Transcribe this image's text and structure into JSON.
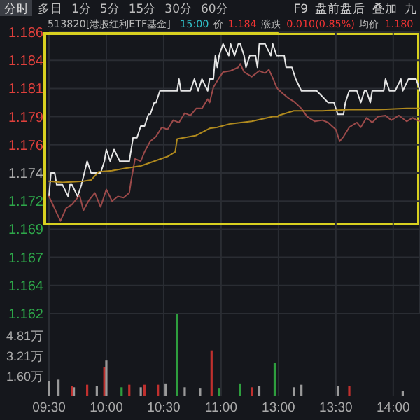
{
  "chart_data": [
    {
      "type": "line",
      "annotations": [
        "分时",
        "多日",
        "1分",
        "5分",
        "15分",
        "30分",
        "60分",
        "F9",
        "盘前盘后",
        "叠加",
        "九",
        "513820[港股红利ETF基金]",
        "15:00",
        "价",
        "1.184",
        "涨跌",
        "0.010(0.85%)",
        "均价",
        "1.180"
      ],
      "xlim": [
        9.5,
        11.5
      ],
      "xticks": [
        9.5,
        10,
        10.5,
        11
      ],
      "ylim": [
        1.162,
        1.186
      ],
      "yticks": [
        1.162,
        {
          "value": 1.1644,
          "label": "1.164"
        },
        {
          "value": 1.1668,
          "label": "1.167"
        },
        {
          "value": 1.1692,
          "label": "1.169"
        },
        {
          "value": 1.1716,
          "label": "1.172"
        },
        1.174,
        {
          "value": 1.1764,
          "label": "1.176"
        },
        {
          "value": 1.1788,
          "label": "1.179"
        },
        {
          "value": 1.1812,
          "label": "1.181"
        },
        {
          "value": 1.1836,
          "label": "1.184"
        },
        1.186
      ],
      "tick_labels": "y",
      "grid": true,
      "marker": "none",
      "line_style": "solid",
      "series": [
        {
          "color": "#e6e6e6",
          "x": [
            9.5,
            9.517,
            9.55,
            9.567,
            9.617,
            9.667,
            9.683,
            9.7,
            9.75,
            9.783,
            9.833,
            9.867,
            9.9,
            9.95,
            9.983,
            10,
            10.033,
            10.067,
            10.117,
            10.15,
            10.2,
            10.233,
            10.267,
            10.3,
            10.333,
            10.367,
            10.383,
            10.417,
            10.433,
            10.467,
            10.483,
            10.533,
            10.617,
            10.633,
            10.65,
            10.733,
            10.767,
            10.8,
            10.833,
            10.883,
            10.9,
            10.933,
            10.95,
            10.967,
            10.983,
            11.017,
            11.067,
            11.083,
            11.117,
            11.15,
            11.167,
            11.2,
            11.217,
            11.25,
            11.267,
            11.3,
            11.317,
            11.333,
            11.367,
            11.383,
            11.433,
            11.45,
            11.483,
            11.5
          ],
          "values": [
            1.172,
            1.174,
            1.174,
            1.173,
            1.173,
            1.172,
            1.173,
            1.173,
            1.172,
            1.173,
            1.175,
            1.174,
            1.174,
            1.174,
            1.175,
            1.176,
            1.175,
            1.176,
            1.175,
            1.175,
            1.175,
            1.177,
            1.177,
            1.178,
            1.178,
            1.179,
            1.179,
            1.18,
            1.18,
            1.181,
            1.181,
            1.181,
            1.181,
            1.182,
            1.181,
            1.181,
            1.182,
            1.181,
            1.182,
            1.181,
            1.182,
            1.182,
            1.184,
            1.183,
            1.184,
            1.185,
            1.184,
            1.185,
            1.184,
            1.185,
            1.185,
            1.184,
            1.183,
            1.184,
            1.184,
            1.184,
            1.183,
            1.185,
            1.185,
            1.185,
            1.184,
            1.185,
            1.184,
            1.184
          ]
        },
        {
          "color": "#9c4a4a",
          "x": [
            9.5,
            9.6,
            9.65,
            9.7,
            9.767,
            9.8,
            9.85,
            9.9,
            9.95,
            10,
            10.05,
            10.1,
            10.15,
            10.2,
            10.217,
            10.25,
            10.3,
            10.333,
            10.383,
            10.433,
            10.483,
            10.533,
            10.583,
            10.633,
            10.683,
            10.733,
            10.783,
            10.833,
            10.883,
            10.9,
            10.933,
            10.983,
            11.017,
            11.083,
            11.15,
            11.167,
            11.2,
            11.267,
            11.333,
            11.383,
            11.417,
            11.45,
            11.483,
            11.5
          ],
          "values": [
            1.172,
            1.1699,
            1.171,
            1.1713,
            1.1721,
            1.1708,
            1.1717,
            1.1723,
            1.1711,
            1.1726,
            1.1716,
            1.172,
            1.1719,
            1.1723,
            1.1734,
            1.1752,
            1.175,
            1.1758,
            1.1767,
            1.1771,
            1.1779,
            1.1777,
            1.1785,
            1.1783,
            1.1791,
            1.1789,
            1.1795,
            1.1795,
            1.1803,
            1.18,
            1.1813,
            1.1821,
            1.1826,
            1.1827,
            1.183,
            1.1833,
            1.1826,
            1.1822,
            1.1827,
            1.1825,
            1.1828,
            1.1821,
            1.1813,
            1.1811
          ]
        },
        {
          "color": "#b08a1e",
          "x": [
            9.5,
            9.617,
            9.8,
            9.867,
            9.933,
            10.05,
            10.167,
            10.3,
            10.417,
            10.533,
            10.6,
            10.617,
            10.783,
            10.9,
            10.967,
            11.083,
            11.267,
            11.45,
            11.5
          ],
          "values": [
            1.1733,
            1.1732,
            1.1733,
            1.1734,
            1.1741,
            1.1742,
            1.1744,
            1.1746,
            1.175,
            1.1754,
            1.1758,
            1.1769,
            1.1772,
            1.1778,
            1.1779,
            1.1782,
            1.1784,
            1.1788,
            1.1788
          ]
        }
      ]
    },
    {
      "type": "line",
      "xlim": [
        13,
        14.233
      ],
      "xticks": [
        13,
        13.5,
        14
      ],
      "ylim": [
        1.162,
        1.186
      ],
      "yticks": [
        1.162,
        1.1644,
        1.1668,
        1.1692,
        1.1716,
        1.174,
        1.1764,
        1.1788,
        1.1812,
        1.1836,
        1.186
      ],
      "tick_labels": false,
      "grid": true,
      "marker": "none",
      "line_style": "solid",
      "series": [
        {
          "color": "#e6e6e6",
          "x": [
            13,
            13.017,
            13.05,
            13.067,
            13.117,
            13.15,
            13.2,
            13.233,
            13.333,
            13.433,
            13.483,
            13.517,
            13.567,
            13.583,
            13.617,
            13.683,
            13.717,
            13.75,
            13.767,
            13.8,
            13.817,
            13.833,
            13.867,
            13.883,
            13.917,
            13.933,
            13.967,
            13.983,
            14.017,
            14.067,
            14.083,
            14.133,
            14.15,
            14.2,
            14.233
          ],
          "values": [
            1.184,
            1.184,
            1.184,
            1.183,
            1.183,
            1.182,
            1.181,
            1.181,
            1.181,
            1.18,
            1.18,
            1.179,
            1.179,
            1.18,
            1.181,
            1.181,
            1.18,
            1.181,
            1.181,
            1.18,
            1.181,
            1.181,
            1.181,
            1.181,
            1.181,
            1.182,
            1.181,
            1.181,
            1.181,
            1.182,
            1.181,
            1.182,
            1.182,
            1.182,
            1.181
          ]
        },
        {
          "color": "#9c4a4a",
          "x": [
            13,
            13.033,
            13.083,
            13.133,
            13.2,
            13.25,
            13.317,
            13.383,
            13.433,
            13.5,
            13.533,
            13.567,
            13.617,
            13.683,
            13.717,
            13.767,
            13.817,
            13.867,
            13.933,
            13.983,
            14.05,
            14.117,
            14.167,
            14.233
          ],
          "values": [
            1.1811,
            1.1808,
            1.1804,
            1.1801,
            1.1795,
            1.1788,
            1.1784,
            1.1785,
            1.1783,
            1.1777,
            1.1767,
            1.1771,
            1.1779,
            1.1783,
            1.1779,
            1.1787,
            1.1783,
            1.1788,
            1.1789,
            1.1785,
            1.1789,
            1.1784,
            1.1787,
            1.1784
          ]
        },
        {
          "color": "#b08a1e",
          "x": [
            13,
            13.133,
            13.383,
            13.617,
            13.867,
            14.117,
            14.233
          ],
          "values": [
            1.1789,
            1.1793,
            1.1793,
            1.1794,
            1.1794,
            1.1795,
            1.1795
          ]
        }
      ]
    },
    {
      "type": "bar",
      "xlim": [
        9.5,
        11.5
      ],
      "xticks": [
        {
          "value": 9.5,
          "label": "09:30"
        },
        {
          "value": 10,
          "label": "10:00"
        },
        {
          "value": 10.5,
          "label": "10:30"
        },
        {
          "value": 11,
          "label": "11:00"
        }
      ],
      "ylim": [
        0,
        6.5
      ],
      "yticks": [
        {
          "value": 1.6,
          "label": "1.60万"
        },
        {
          "value": 3.21,
          "label": "3.21万"
        },
        {
          "value": 4.81,
          "label": "4.81万"
        }
      ],
      "grid": "x",
      "x": [
        9.5,
        9.583,
        9.7,
        9.717,
        9.833,
        9.917,
        9.983,
        10,
        10.133,
        10.2,
        10.3,
        10.333,
        10.45,
        10.517,
        10.617,
        10.683,
        10.817,
        10.917,
        10.983,
        11.167,
        11.267,
        11.333,
        11.467
      ],
      "values": [
        1.2,
        1.3,
        0.8,
        0.7,
        0.9,
        0.8,
        2.3,
        2.8,
        0.7,
        0.9,
        0.7,
        0.9,
        0.9,
        1.0,
        6.5,
        0.7,
        0.6,
        3.6,
        0.6,
        1.0,
        0.7,
        0.8,
        2.6
      ],
      "colors": [
        "#9a9a9a",
        "#9a9a9a",
        "#c0302e",
        "#9a9a9a",
        "#c0302e",
        "#9a9a9a",
        "#c0302e",
        "#9a9a9a",
        "#2e9e3e",
        "#c0302e",
        "#9a9a9a",
        "#c0302e",
        "#c0302e",
        "#9a9a9a",
        "#2e9e3e",
        "#9a9a9a",
        "#9a9a9a",
        "#c0302e",
        "#2e9e3e",
        "#2e9e3e",
        "#c0302e",
        "#9a9a9a",
        "#2e9e3e"
      ]
    },
    {
      "type": "bar",
      "xlim": [
        13,
        14.233
      ],
      "xticks": [
        {
          "value": 13,
          "label": "13:00"
        },
        {
          "value": 13.5,
          "label": "13:30"
        },
        {
          "value": 14,
          "label": "14:00"
        }
      ],
      "ylim": [
        0,
        6.5
      ],
      "tick_labels": "x",
      "grid": "x",
      "x": [
        13.133,
        13.2,
        13.517,
        13.617,
        14.083
      ],
      "values": [
        0.7,
        0.9,
        0.8,
        0.8,
        0.4
      ],
      "colors": [
        "#9a9a9a",
        "#9a9a9a",
        "#9a9a9a",
        "#c0302e",
        "#9a9a9a"
      ]
    }
  ]
}
